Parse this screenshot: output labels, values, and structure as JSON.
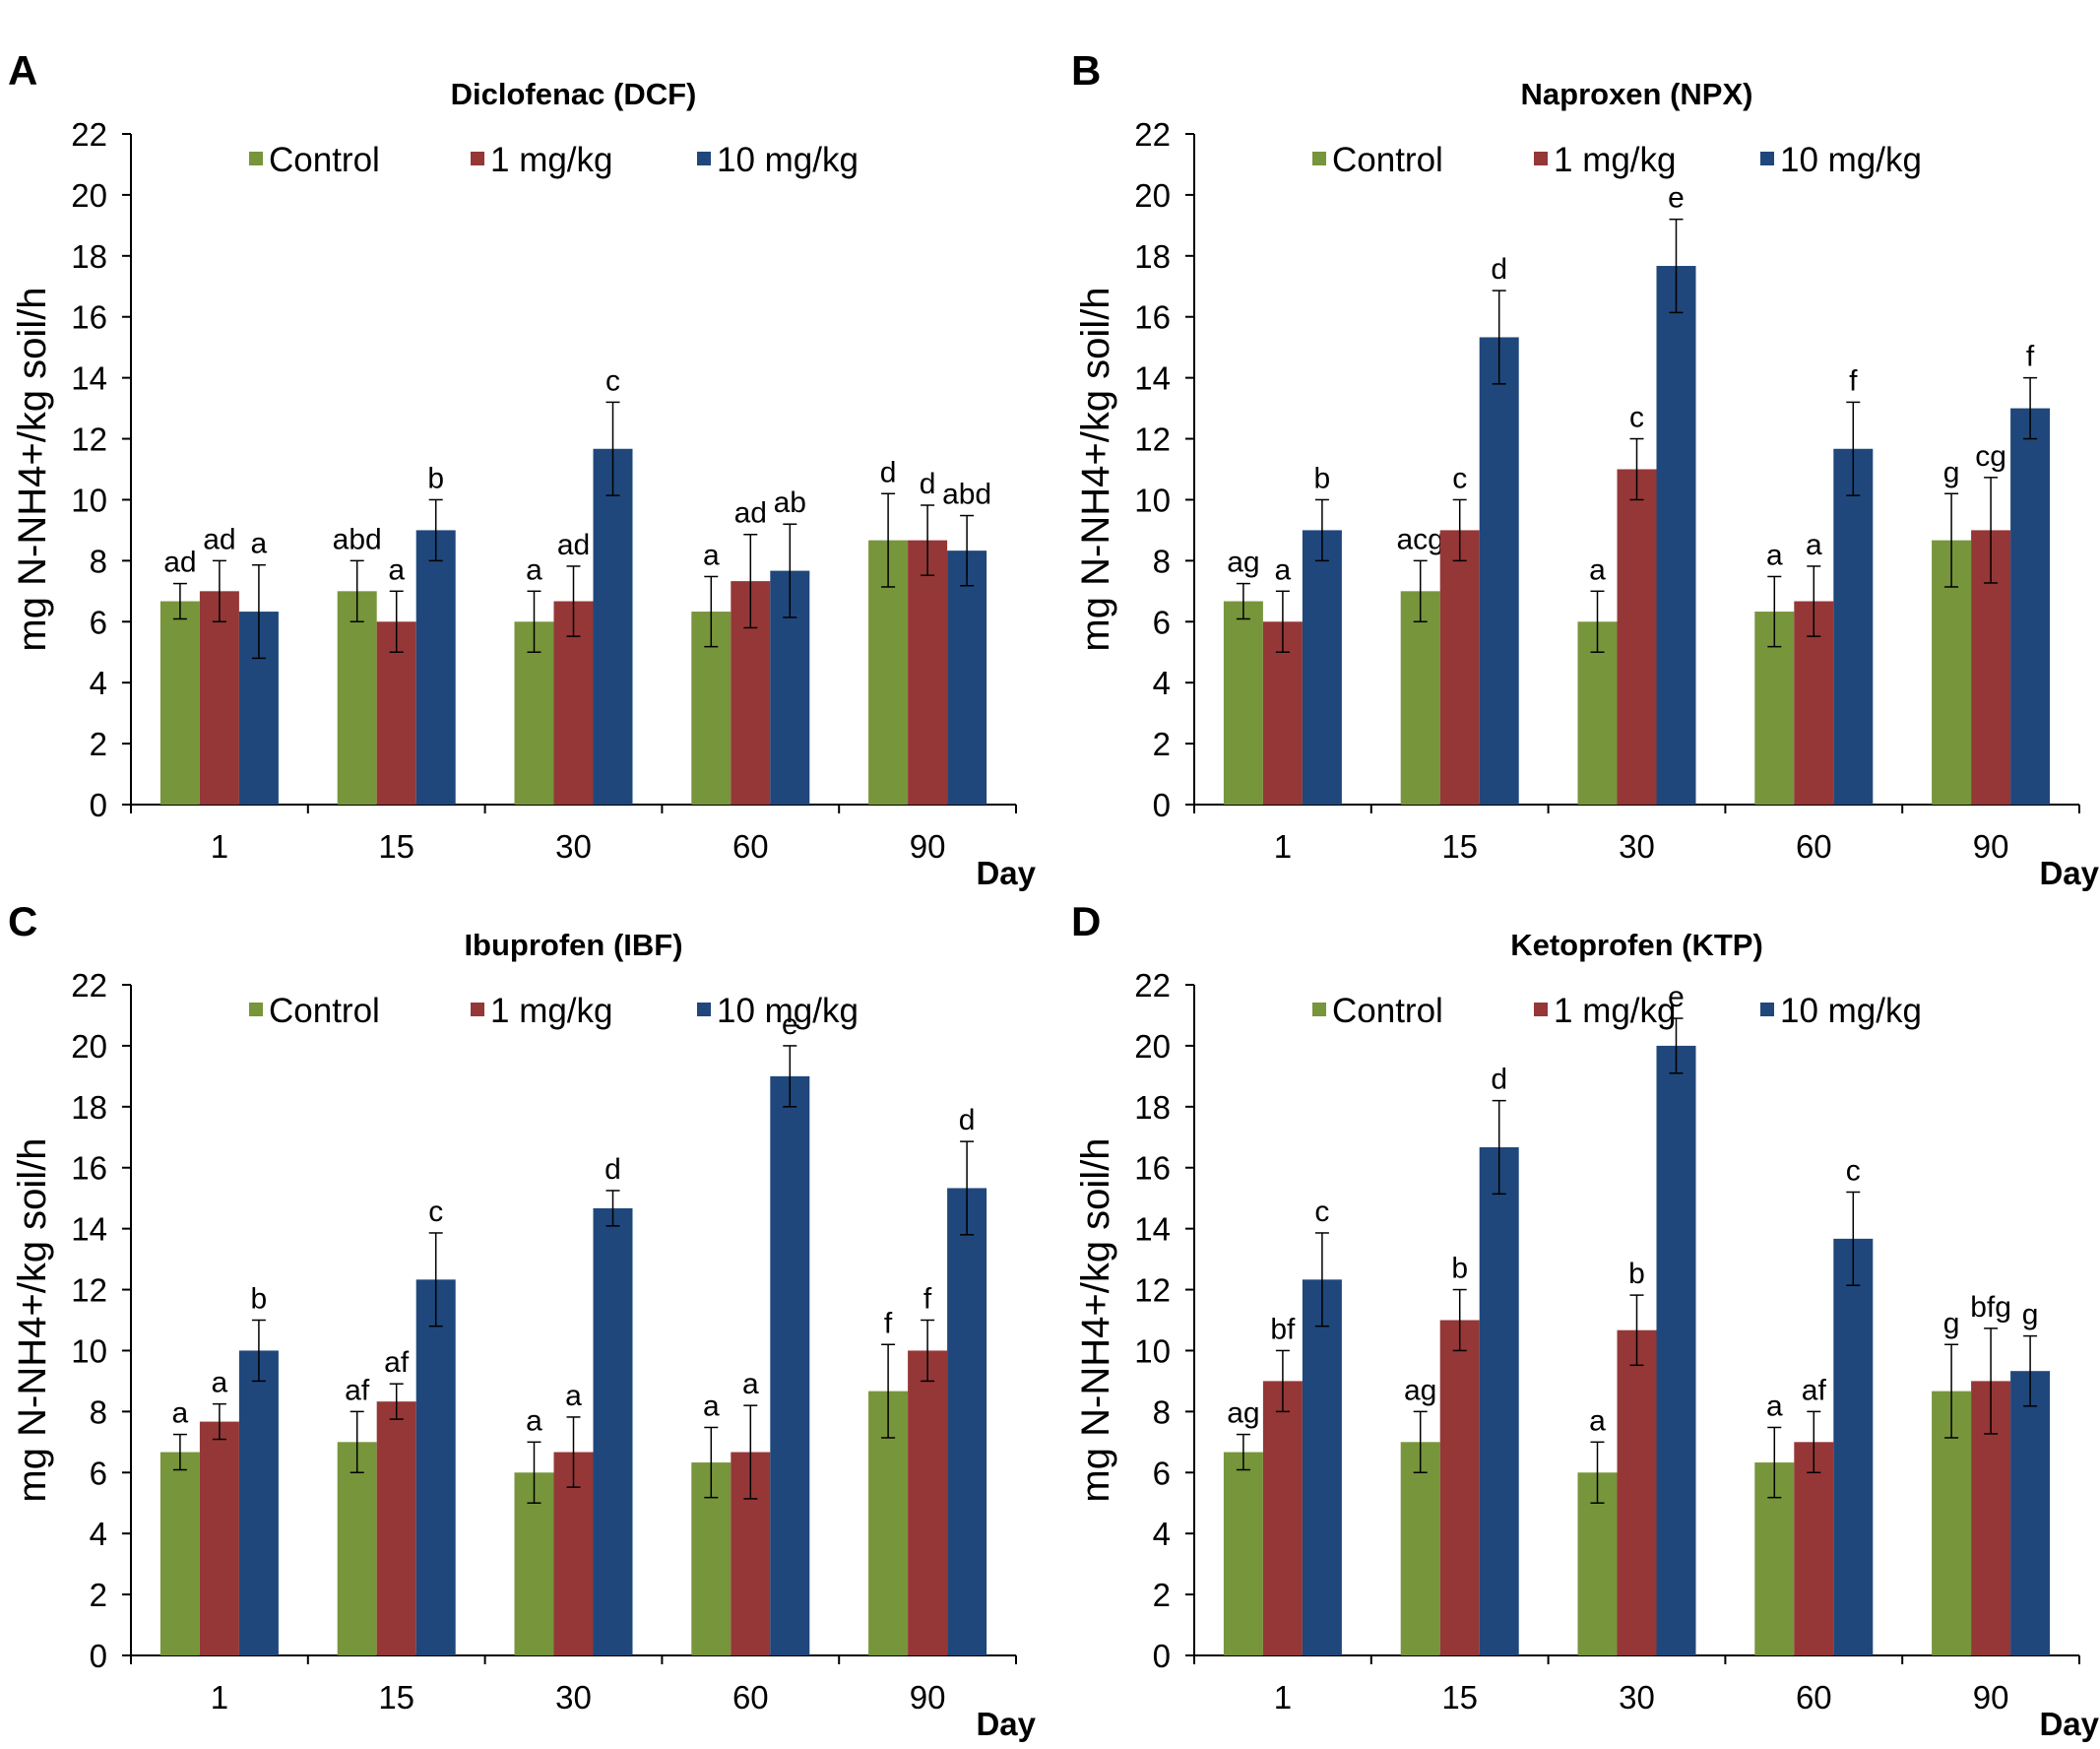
{
  "colors": {
    "control": "#77953b",
    "low": "#953737",
    "high": "#1f477b"
  },
  "chart_data": [
    {
      "type": "bar",
      "panel": "A",
      "title": "Diclofenac (DCF)",
      "xlabel": "Day",
      "ylabel": "mg N-NH4+/kg soil/h",
      "ylim": [
        0,
        22
      ],
      "yticks": [
        "0",
        "2",
        "4",
        "6",
        "8",
        "10",
        "12",
        "14",
        "16",
        "18",
        "20",
        "22"
      ],
      "categories": [
        "1",
        "15",
        "30",
        "60",
        "90"
      ],
      "legend": "top",
      "series": [
        {
          "name": "Control",
          "values": [
            6.67,
            7.0,
            6.0,
            6.33,
            8.67
          ],
          "errors": [
            0.58,
            1.0,
            1.0,
            1.15,
            1.53
          ],
          "labels": [
            "ad",
            "abd",
            "a",
            "a",
            "d"
          ]
        },
        {
          "name": "1 mg/kg",
          "values": [
            7.0,
            6.0,
            6.67,
            7.33,
            8.67
          ],
          "errors": [
            1.0,
            1.0,
            1.15,
            1.53,
            1.15
          ],
          "labels": [
            "ad",
            "a",
            "ad",
            "ad",
            "d"
          ]
        },
        {
          "name": "10 mg/kg",
          "values": [
            6.33,
            9.0,
            11.67,
            7.67,
            8.33
          ],
          "errors": [
            1.53,
            1.0,
            1.53,
            1.53,
            1.15
          ],
          "labels": [
            "a",
            "b",
            "c",
            "ab",
            "abd"
          ]
        }
      ]
    },
    {
      "type": "bar",
      "panel": "B",
      "title": "Naproxen (NPX)",
      "xlabel": "Day",
      "ylabel": "mg N-NH4+/kg soil/h",
      "ylim": [
        0,
        22
      ],
      "yticks": [
        "0",
        "2",
        "4",
        "6",
        "8",
        "10",
        "12",
        "14",
        "16",
        "18",
        "20",
        "22"
      ],
      "categories": [
        "1",
        "15",
        "30",
        "60",
        "90"
      ],
      "legend": "top",
      "series": [
        {
          "name": "Control",
          "values": [
            6.67,
            7.0,
            6.0,
            6.33,
            8.67
          ],
          "errors": [
            0.58,
            1.0,
            1.0,
            1.15,
            1.53
          ],
          "labels": [
            "ag",
            "acg",
            "a",
            "a",
            "g"
          ]
        },
        {
          "name": "1 mg/kg",
          "values": [
            6.0,
            9.0,
            11.0,
            6.67,
            9.0
          ],
          "errors": [
            1.0,
            1.0,
            1.0,
            1.15,
            1.73
          ],
          "labels": [
            "a",
            "c",
            "c",
            "a",
            "cg"
          ]
        },
        {
          "name": "10 mg/kg",
          "values": [
            9.0,
            15.33,
            17.67,
            11.67,
            13.0
          ],
          "errors": [
            1.0,
            1.53,
            1.53,
            1.53,
            1.0
          ],
          "labels": [
            "b",
            "d",
            "e",
            "f",
            "f"
          ]
        }
      ]
    },
    {
      "type": "bar",
      "panel": "C",
      "title": "Ibuprofen (IBF)",
      "xlabel": "Day",
      "ylabel": "mg N-NH4+/kg soil/h",
      "ylim": [
        0,
        22
      ],
      "yticks": [
        "0",
        "2",
        "4",
        "6",
        "8",
        "10",
        "12",
        "14",
        "16",
        "18",
        "20",
        "22"
      ],
      "categories": [
        "1",
        "15",
        "30",
        "60",
        "90"
      ],
      "legend": "top",
      "series": [
        {
          "name": "Control",
          "values": [
            6.67,
            7.0,
            6.0,
            6.33,
            8.67
          ],
          "errors": [
            0.58,
            1.0,
            1.0,
            1.15,
            1.53
          ],
          "labels": [
            "a",
            "af",
            "a",
            "a",
            "f"
          ]
        },
        {
          "name": "1 mg/kg",
          "values": [
            7.67,
            8.33,
            6.67,
            6.67,
            10.0
          ],
          "errors": [
            0.58,
            0.58,
            1.15,
            1.53,
            1.0
          ],
          "labels": [
            "a",
            "af",
            "a",
            "a",
            "f"
          ]
        },
        {
          "name": "10 mg/kg",
          "values": [
            10.0,
            12.33,
            14.67,
            19.0,
            15.33
          ],
          "errors": [
            1.0,
            1.53,
            0.58,
            1.0,
            1.53
          ],
          "labels": [
            "b",
            "c",
            "d",
            "e",
            "d"
          ]
        }
      ]
    },
    {
      "type": "bar",
      "panel": "D",
      "title": "Ketoprofen (KTP)",
      "xlabel": "Day",
      "ylabel": "mg N-NH4+/kg soil/h",
      "ylim": [
        0,
        22
      ],
      "yticks": [
        "0",
        "2",
        "4",
        "6",
        "8",
        "10",
        "12",
        "14",
        "16",
        "18",
        "20",
        "22"
      ],
      "categories": [
        "1",
        "15",
        "30",
        "60",
        "90"
      ],
      "legend": "top",
      "series": [
        {
          "name": "Control",
          "values": [
            6.67,
            7.0,
            6.0,
            6.33,
            8.67
          ],
          "errors": [
            0.58,
            1.0,
            1.0,
            1.15,
            1.53
          ],
          "labels": [
            "ag",
            "ag",
            "a",
            "a",
            "g"
          ]
        },
        {
          "name": "1 mg/kg",
          "values": [
            9.0,
            11.0,
            10.67,
            7.0,
            9.0
          ],
          "errors": [
            1.0,
            1.0,
            1.15,
            1.0,
            1.73
          ],
          "labels": [
            "bf",
            "b",
            "b",
            "af",
            "bfg"
          ]
        },
        {
          "name": "10 mg/kg",
          "values": [
            12.33,
            16.67,
            20.0,
            13.67,
            9.33
          ],
          "errors": [
            1.53,
            1.53,
            0.9,
            1.53,
            1.15
          ],
          "labels": [
            "c",
            "d",
            "e",
            "c",
            "g"
          ]
        }
      ]
    }
  ]
}
